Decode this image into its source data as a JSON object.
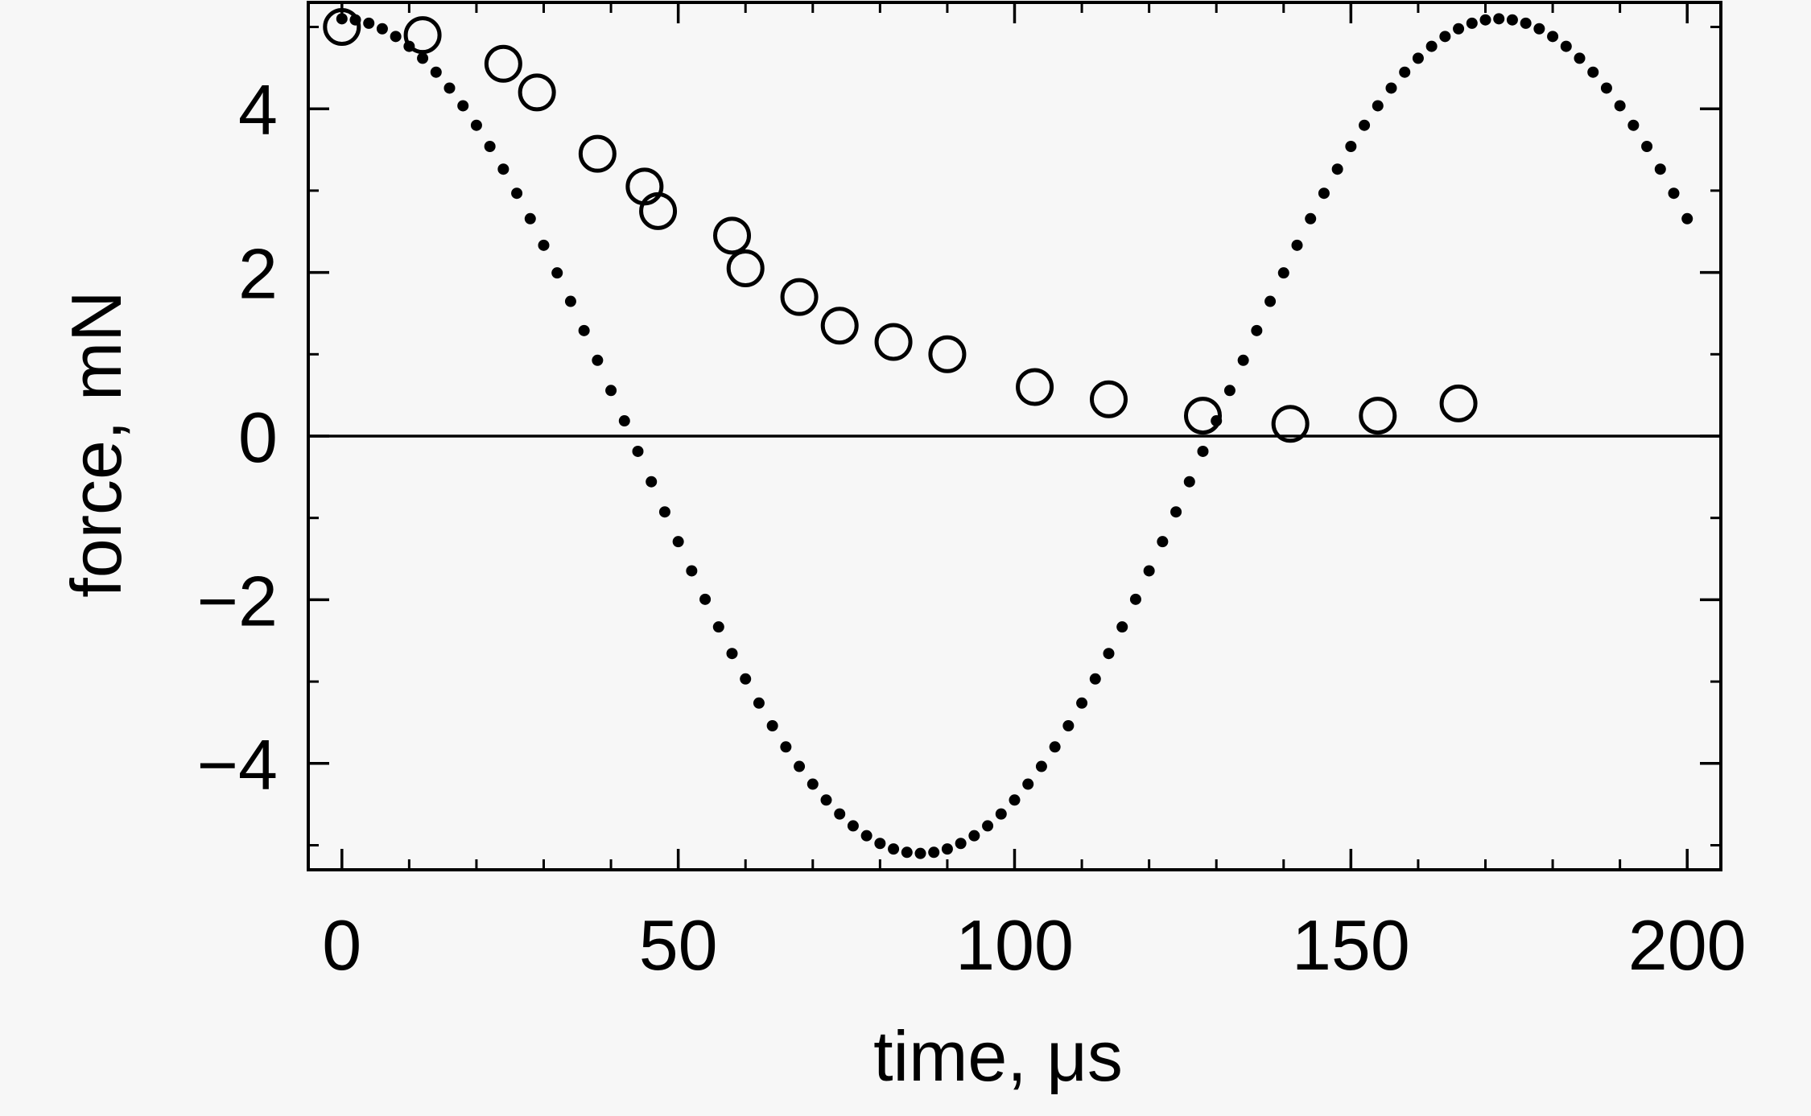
{
  "chart_data": {
    "type": "scatter",
    "title": "",
    "xlabel": "time, μs",
    "ylabel": "force, mN",
    "xlim": [
      -5,
      205
    ],
    "ylim": [
      -5.3,
      5.3
    ],
    "xticks": [
      0,
      50,
      100,
      150,
      200
    ],
    "xtick_labels": [
      "0",
      "50",
      "100",
      "150",
      "200"
    ],
    "xminor_step": 10,
    "yticks": [
      -4,
      -2,
      0,
      2,
      4
    ],
    "ytick_labels": [
      "−4",
      "−2",
      "0",
      "2",
      "4"
    ],
    "yminor_step": 1,
    "zero_line": true,
    "grid": false,
    "series": [
      {
        "marker": "filled-dot",
        "model": "sinusoid",
        "amplitude": 5.1,
        "period": 172,
        "x_start": 0,
        "x_end": 200,
        "x_step": 2
      },
      {
        "marker": "open-circle",
        "points": [
          [
            0,
            5.0
          ],
          [
            12,
            4.9
          ],
          [
            24,
            4.55
          ],
          [
            29,
            4.2
          ],
          [
            38,
            3.45
          ],
          [
            45,
            3.05
          ],
          [
            47,
            2.75
          ],
          [
            58,
            2.45
          ],
          [
            60,
            2.05
          ],
          [
            68,
            1.7
          ],
          [
            74,
            1.35
          ],
          [
            82,
            1.15
          ],
          [
            90,
            1.0
          ],
          [
            103,
            0.6
          ],
          [
            114,
            0.45
          ],
          [
            128,
            0.25
          ],
          [
            141,
            0.15
          ],
          [
            154,
            0.25
          ],
          [
            166,
            0.4
          ]
        ]
      }
    ]
  },
  "colors": {
    "ink": "#000000",
    "background": "#f7f7f7"
  }
}
